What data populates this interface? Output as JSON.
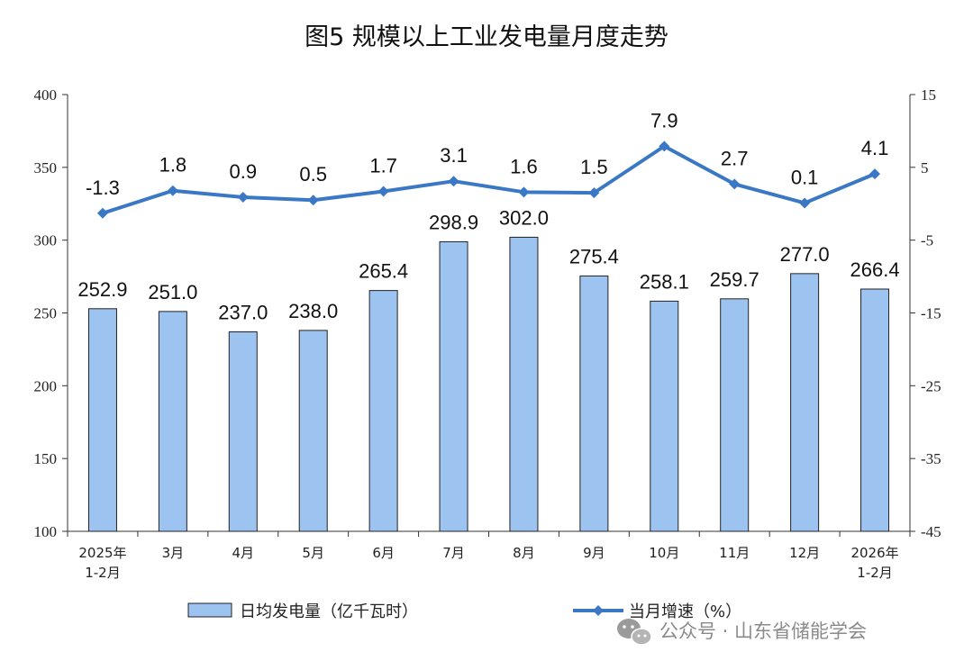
{
  "chart_data": {
    "type": "bar+line",
    "title": "图5  规模以上工业发电量月度走势",
    "categories": [
      [
        "2025年",
        "1-2月"
      ],
      [
        "3月"
      ],
      [
        "4月"
      ],
      [
        "5月"
      ],
      [
        "6月"
      ],
      [
        "7月"
      ],
      [
        "8月"
      ],
      [
        "9月"
      ],
      [
        "10月"
      ],
      [
        "11月"
      ],
      [
        "12月"
      ],
      [
        "2026年",
        "1-2月"
      ]
    ],
    "series": [
      {
        "name": "日均发电量（亿千瓦时）",
        "type": "bar",
        "axis": "left",
        "color": "#9DC3F0",
        "values": [
          252.9,
          251.0,
          237.0,
          238.0,
          265.4,
          298.9,
          302.0,
          275.4,
          258.1,
          259.7,
          277.0,
          266.4
        ],
        "labels": [
          "252.9",
          "251.0",
          "237.0",
          "238.0",
          "265.4",
          "298.9",
          "302.0",
          "275.4",
          "258.1",
          "259.7",
          "277.0",
          "266.4"
        ]
      },
      {
        "name": "当月增速（%）",
        "type": "line",
        "axis": "right",
        "color": "#3A78C6",
        "values": [
          -1.3,
          1.8,
          0.9,
          0.5,
          1.7,
          3.1,
          1.6,
          1.5,
          7.9,
          2.7,
          0.1,
          4.1
        ],
        "labels": [
          "-1.3",
          "1.8",
          "0.9",
          "0.5",
          "1.7",
          "3.1",
          "1.6",
          "1.5",
          "7.9",
          "2.7",
          "0.1",
          "4.1"
        ]
      }
    ],
    "y_left": {
      "min": 100,
      "max": 400,
      "ticks": [
        "100",
        "150",
        "200",
        "250",
        "300",
        "350",
        "400"
      ]
    },
    "y_right": {
      "min": -45,
      "max": 15,
      "ticks": [
        "-45",
        "-35",
        "-25",
        "-15",
        "-5",
        "5",
        "15"
      ]
    },
    "grid": false,
    "legend_position": "bottom"
  },
  "watermark": {
    "text": "公众号 · 山东省储能学会",
    "icon": "wechat-icon"
  }
}
